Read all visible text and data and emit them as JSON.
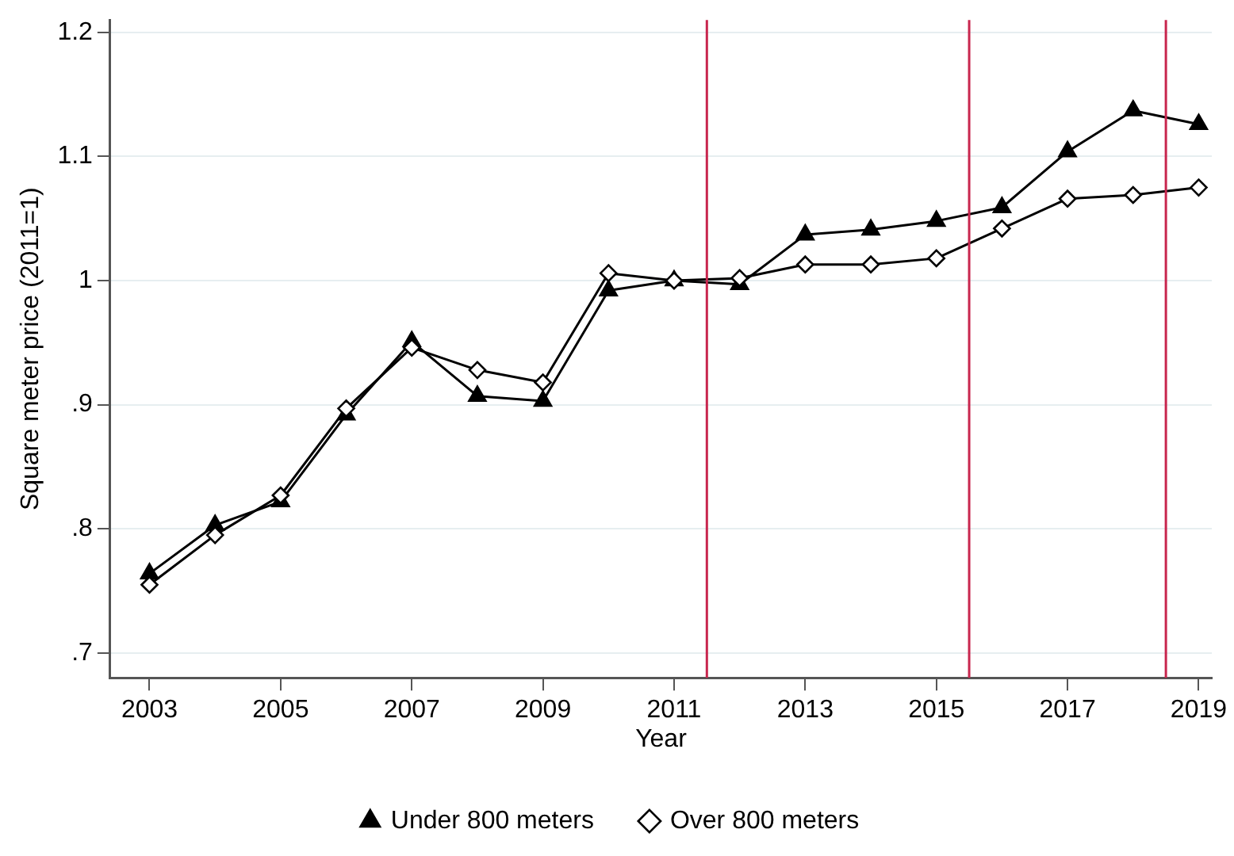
{
  "chart_data": {
    "type": "line",
    "xlabel": "Year",
    "ylabel": "Square meter price (2011=1)",
    "x": [
      2003,
      2004,
      2005,
      2006,
      2007,
      2008,
      2009,
      2010,
      2011,
      2012,
      2013,
      2014,
      2015,
      2016,
      2017,
      2018,
      2019
    ],
    "series": [
      {
        "name": "Under 800 meters",
        "color": "#000000",
        "marker": "triangle",
        "values": [
          0.764,
          0.803,
          0.822,
          0.892,
          0.951,
          0.907,
          0.903,
          0.992,
          1.0,
          0.997,
          1.037,
          1.041,
          1.048,
          1.059,
          1.104,
          1.137,
          1.126
        ]
      },
      {
        "name": "Over 800 meters",
        "color": "#000000",
        "marker": "diamond",
        "values": [
          0.755,
          0.795,
          0.827,
          0.897,
          0.946,
          0.928,
          0.918,
          1.006,
          1.0,
          1.002,
          1.013,
          1.013,
          1.018,
          1.042,
          1.066,
          1.069,
          1.075
        ]
      }
    ],
    "xlim": [
      2002.4,
      2019.2
    ],
    "xticks": [
      2003,
      2005,
      2007,
      2009,
      2011,
      2013,
      2015,
      2017,
      2019
    ],
    "ylim": [
      0.68,
      1.21
    ],
    "yticks": [
      {
        "value": 0.7,
        "label": ".7"
      },
      {
        "value": 0.8,
        "label": ".8"
      },
      {
        "value": 0.9,
        "label": ".9"
      },
      1,
      {
        "value": 1.1,
        "label": "1.1"
      },
      {
        "value": 1.2,
        "label": "1.2"
      }
    ],
    "ref_lines": [
      {
        "axis": "x",
        "value": 2011.5,
        "color": "#c8264e"
      },
      {
        "axis": "x",
        "value": 2015.5,
        "color": "#c8264e"
      },
      {
        "axis": "x",
        "value": 2018.5,
        "color": "#c8264e"
      }
    ],
    "grid": "y",
    "legend": "bottom",
    "line_style": "solid"
  }
}
